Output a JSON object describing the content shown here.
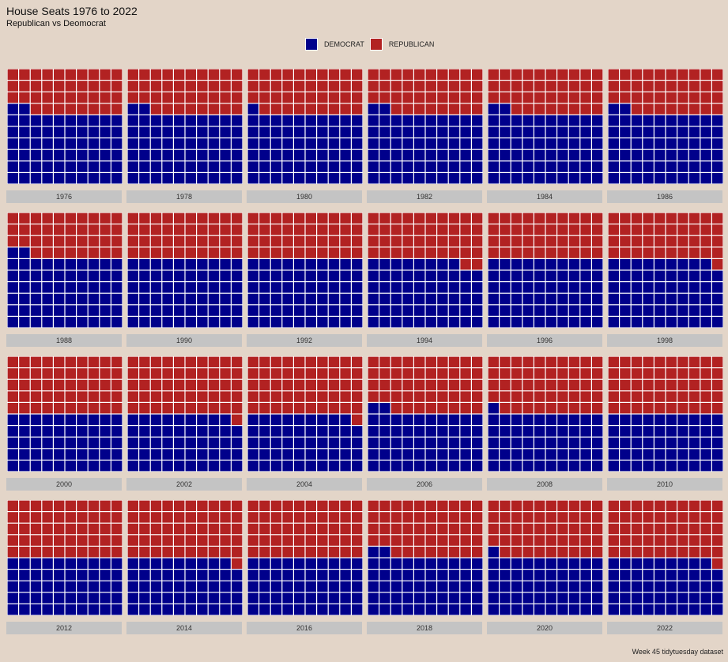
{
  "title": "House Seats 1976 to 2022",
  "subtitle": "Republican vs Deomocrat",
  "caption": "Week 45 tidytuesday dataset",
  "legend": [
    {
      "name": "DEMOCRAT",
      "color": "#00008b"
    },
    {
      "name": "REPUBLICAN",
      "color": "#b22222"
    }
  ],
  "colors": {
    "democrat": "#00008b",
    "republican": "#b22222",
    "background": "#e3d5c8",
    "strip": "#c4c4c4"
  },
  "chart_data": {
    "type": "waffle",
    "grid": {
      "rows": 10,
      "cols": 10,
      "fill_order": "row-wise from bottom-left"
    },
    "unit": "cells out of 100",
    "series": [
      {
        "name": "DEMOCRAT"
      },
      {
        "name": "REPUBLICAN"
      }
    ],
    "panels": [
      {
        "year": "1976",
        "democrat": 62,
        "republican": 38
      },
      {
        "year": "1978",
        "democrat": 62,
        "republican": 38
      },
      {
        "year": "1980",
        "democrat": 61,
        "republican": 39
      },
      {
        "year": "1982",
        "democrat": 62,
        "republican": 38
      },
      {
        "year": "1984",
        "democrat": 62,
        "republican": 38
      },
      {
        "year": "1986",
        "democrat": 62,
        "republican": 38
      },
      {
        "year": "1988",
        "democrat": 62,
        "republican": 38
      },
      {
        "year": "1990",
        "democrat": 60,
        "republican": 40
      },
      {
        "year": "1992",
        "democrat": 60,
        "republican": 40
      },
      {
        "year": "1994",
        "democrat": 58,
        "republican": 42
      },
      {
        "year": "1996",
        "democrat": 60,
        "republican": 40
      },
      {
        "year": "1998",
        "democrat": 59,
        "republican": 41
      },
      {
        "year": "2000",
        "democrat": 50,
        "republican": 50
      },
      {
        "year": "2002",
        "democrat": 49,
        "republican": 51
      },
      {
        "year": "2004",
        "democrat": 49,
        "republican": 51
      },
      {
        "year": "2006",
        "democrat": 52,
        "republican": 48
      },
      {
        "year": "2008",
        "democrat": 51,
        "republican": 49
      },
      {
        "year": "2010",
        "democrat": 50,
        "republican": 50
      },
      {
        "year": "2012",
        "democrat": 50,
        "republican": 50
      },
      {
        "year": "2014",
        "democrat": 49,
        "republican": 51
      },
      {
        "year": "2016",
        "democrat": 50,
        "republican": 50
      },
      {
        "year": "2018",
        "democrat": 52,
        "republican": 48
      },
      {
        "year": "2020",
        "democrat": 51,
        "republican": 49
      },
      {
        "year": "2022",
        "democrat": 49,
        "republican": 51
      }
    ]
  }
}
